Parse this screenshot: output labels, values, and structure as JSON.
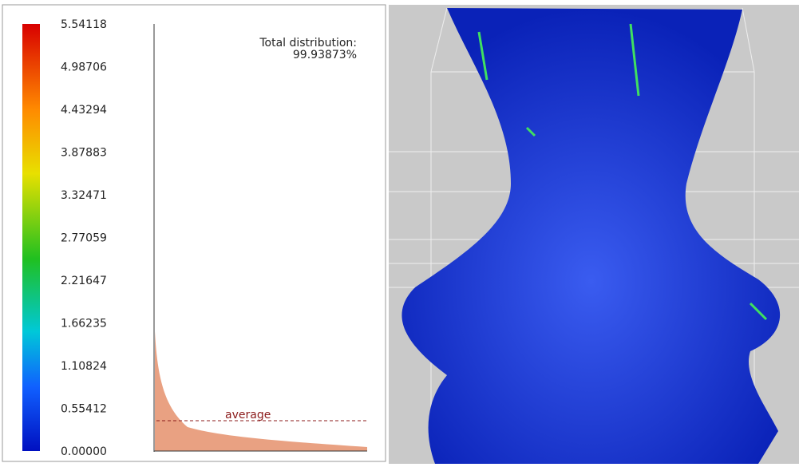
{
  "scale": {
    "labels": [
      "5.54118",
      "4.98706",
      "4.43294",
      "3.87883",
      "3.32471",
      "2.77059",
      "2.21647",
      "1.66235",
      "1.10824",
      "0.55412",
      "0.00000"
    ]
  },
  "distribution": {
    "title": "Total distribution:",
    "value": "99.93873%"
  },
  "average_label": "average"
}
